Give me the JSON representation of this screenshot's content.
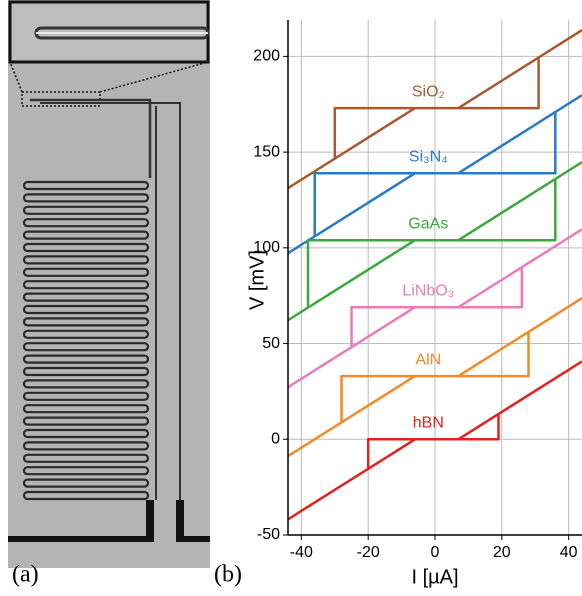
{
  "panel_labels": {
    "a": "(a)",
    "b": "(b)"
  },
  "chart_data": {
    "type": "line",
    "xlabel": "I [µA]",
    "ylabel": "V [mV]",
    "xlim": [
      -44,
      44
    ],
    "ylim": [
      -50,
      219
    ],
    "xticks": [
      -40,
      -20,
      0,
      20,
      40
    ],
    "yticks": [
      -50,
      0,
      50,
      100,
      150,
      200
    ],
    "grid": true,
    "series": [
      {
        "name": "SiO₂",
        "color": "#a65a2e",
        "x": [
          -44,
          -6,
          null,
          -30,
          -30,
          31,
          31,
          null,
          7,
          44
        ],
        "values": [
          131.2,
          173,
          null,
          146.6,
          173,
          173,
          199.4,
          null,
          173,
          213.7
        ]
      },
      {
        "name": "Si₃N₄",
        "color": "#2a7bc4",
        "x": [
          -44,
          -6,
          null,
          -36,
          -36,
          36,
          36,
          null,
          7,
          44
        ],
        "values": [
          97.2,
          139,
          null,
          106,
          139,
          139,
          170.9,
          null,
          139,
          179.7
        ]
      },
      {
        "name": "GaAs",
        "color": "#3da83d",
        "x": [
          -44,
          -6,
          null,
          -38,
          -38,
          36,
          36,
          null,
          7,
          44
        ],
        "values": [
          62.2,
          104,
          null,
          68.8,
          104,
          104,
          135.9,
          null,
          104,
          144.7
        ]
      },
      {
        "name": "LiNbO₃",
        "color": "#e87bbd",
        "x": [
          -44,
          -6,
          null,
          -25,
          -25,
          26,
          26,
          null,
          7,
          44
        ],
        "values": [
          27.2,
          69,
          null,
          48.1,
          69,
          69,
          89.9,
          null,
          69,
          109.7
        ]
      },
      {
        "name": "AlN",
        "color": "#f28a26",
        "x": [
          -44,
          -6,
          null,
          -28,
          -28,
          28,
          28,
          null,
          7,
          44
        ],
        "values": [
          -8.8,
          33,
          null,
          8.8,
          33,
          33,
          56.1,
          null,
          33,
          73.7
        ]
      },
      {
        "name": "hBN",
        "color": "#e0231f",
        "x": [
          -44,
          -6,
          null,
          -20,
          -20,
          19,
          19,
          null,
          7,
          44
        ],
        "values": [
          -41.8,
          0,
          null,
          -15.4,
          0,
          0,
          13.2,
          null,
          0,
          40.7
        ]
      }
    ]
  }
}
